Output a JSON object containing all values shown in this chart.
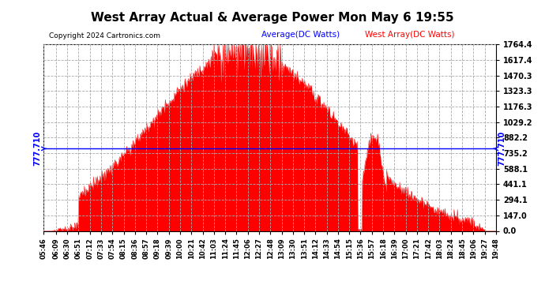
{
  "title": "West Array Actual & Average Power Mon May 6 19:55",
  "copyright": "Copyright 2024 Cartronics.com",
  "legend_average": "Average(DC Watts)",
  "legend_west": "West Array(DC Watts)",
  "average_value": 777.71,
  "ymax": 1764.4,
  "ymin": 0.0,
  "yticks": [
    0.0,
    147.0,
    294.1,
    441.1,
    588.1,
    735.2,
    882.2,
    1029.2,
    1176.3,
    1323.3,
    1470.3,
    1617.4,
    1764.4
  ],
  "avg_label": "777.710",
  "background_color": "#ffffff",
  "fill_color": "#ff0000",
  "avg_line_color": "#0000ff",
  "grid_color": "#aaaaaa",
  "title_color": "#000000",
  "copyright_color": "#000000",
  "legend_avg_color": "#0000ff",
  "legend_west_color": "#ff0000"
}
